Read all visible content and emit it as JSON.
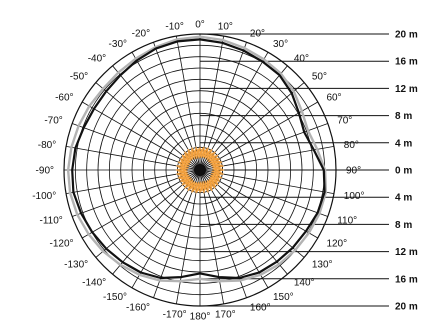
{
  "angle_labels": [
    "0°",
    "10°",
    "20°",
    "30°",
    "40°",
    "50°",
    "60°",
    "70°",
    "80°",
    "90°",
    "100°",
    "110°",
    "120°",
    "130°",
    "140°",
    "150°",
    "160°",
    "170°",
    "180°",
    "-170°",
    "-160°",
    "-150°",
    "-140°",
    "-130°",
    "-120°",
    "-110°",
    "-100°",
    "-90°",
    "-80°",
    "-70°",
    "-60°",
    "-50°",
    "-40°",
    "-30°",
    "-20°",
    "-10°"
  ],
  "distance_scale": [
    {
      "label": "20 m",
      "value": 20,
      "side": "top"
    },
    {
      "label": "16 m",
      "value": 16,
      "side": "top"
    },
    {
      "label": "12 m",
      "value": 12,
      "side": "top"
    },
    {
      "label": "8 m",
      "value": 8,
      "side": "top"
    },
    {
      "label": "4 m",
      "value": 4,
      "side": "top"
    },
    {
      "label": "0 m",
      "value": 0,
      "side": "center"
    },
    {
      "label": "4 m",
      "value": 4,
      "side": "bottom"
    },
    {
      "label": "8 m",
      "value": 8,
      "side": "bottom"
    },
    {
      "label": "12 m",
      "value": 12,
      "side": "bottom"
    },
    {
      "label": "16 m",
      "value": 16,
      "side": "bottom"
    },
    {
      "label": "20 m",
      "value": 20,
      "side": "bottom"
    }
  ],
  "range_max_m": 20,
  "ring_count": 12,
  "spoke_step_deg": 10,
  "curves": [
    {
      "color": "#111111",
      "points": [
        {
          "angle": 0,
          "r": 19.2
        },
        {
          "angle": 10,
          "r": 19.0
        },
        {
          "angle": 20,
          "r": 18.7
        },
        {
          "angle": 30,
          "r": 18.4
        },
        {
          "angle": 40,
          "r": 18.2
        },
        {
          "angle": 50,
          "r": 17.6
        },
        {
          "angle": 60,
          "r": 16.8
        },
        {
          "angle": 70,
          "r": 16.3
        },
        {
          "angle": 80,
          "r": 17.0
        },
        {
          "angle": 90,
          "r": 18.2
        },
        {
          "angle": 100,
          "r": 18.6
        },
        {
          "angle": 110,
          "r": 18.4
        },
        {
          "angle": 120,
          "r": 18.0
        },
        {
          "angle": 130,
          "r": 17.8
        },
        {
          "angle": 140,
          "r": 17.6
        },
        {
          "angle": 150,
          "r": 17.4
        },
        {
          "angle": 160,
          "r": 16.9
        },
        {
          "angle": 170,
          "r": 16.0
        },
        {
          "angle": 180,
          "r": 15.2
        },
        {
          "angle": 190,
          "r": 16.0
        },
        {
          "angle": 200,
          "r": 16.9
        },
        {
          "angle": 210,
          "r": 17.4
        },
        {
          "angle": 220,
          "r": 17.7
        },
        {
          "angle": 230,
          "r": 18.0
        },
        {
          "angle": 240,
          "r": 18.3
        },
        {
          "angle": 250,
          "r": 18.6
        },
        {
          "angle": 260,
          "r": 18.9
        },
        {
          "angle": 270,
          "r": 18.8
        },
        {
          "angle": 280,
          "r": 18.6
        },
        {
          "angle": 290,
          "r": 18.2
        },
        {
          "angle": 300,
          "r": 18.0
        },
        {
          "angle": 310,
          "r": 18.0
        },
        {
          "angle": 320,
          "r": 18.2
        },
        {
          "angle": 330,
          "r": 18.6
        },
        {
          "angle": 340,
          "r": 19.0
        },
        {
          "angle": 350,
          "r": 19.2
        }
      ]
    },
    {
      "color": "#b3b3b3",
      "points": [
        {
          "angle": 0,
          "r": 19.6
        },
        {
          "angle": 10,
          "r": 19.4
        },
        {
          "angle": 20,
          "r": 19.1
        },
        {
          "angle": 30,
          "r": 18.8
        },
        {
          "angle": 40,
          "r": 18.5
        },
        {
          "angle": 50,
          "r": 18.0
        },
        {
          "angle": 60,
          "r": 17.3
        },
        {
          "angle": 70,
          "r": 16.9
        },
        {
          "angle": 80,
          "r": 17.5
        },
        {
          "angle": 90,
          "r": 18.4
        },
        {
          "angle": 100,
          "r": 18.8
        },
        {
          "angle": 110,
          "r": 18.7
        },
        {
          "angle": 120,
          "r": 18.5
        },
        {
          "angle": 130,
          "r": 18.3
        },
        {
          "angle": 140,
          "r": 18.1
        },
        {
          "angle": 150,
          "r": 17.8
        },
        {
          "angle": 160,
          "r": 17.3
        },
        {
          "angle": 170,
          "r": 16.6
        },
        {
          "angle": 180,
          "r": 16.0
        },
        {
          "angle": 190,
          "r": 16.6
        },
        {
          "angle": 200,
          "r": 17.3
        },
        {
          "angle": 210,
          "r": 17.8
        },
        {
          "angle": 220,
          "r": 18.2
        },
        {
          "angle": 230,
          "r": 18.6
        },
        {
          "angle": 240,
          "r": 18.9
        },
        {
          "angle": 250,
          "r": 19.2
        },
        {
          "angle": 260,
          "r": 19.4
        },
        {
          "angle": 270,
          "r": 19.4
        },
        {
          "angle": 280,
          "r": 19.2
        },
        {
          "angle": 290,
          "r": 19.0
        },
        {
          "angle": 300,
          "r": 18.8
        },
        {
          "angle": 310,
          "r": 18.6
        },
        {
          "angle": 320,
          "r": 18.7
        },
        {
          "angle": 330,
          "r": 18.9
        },
        {
          "angle": 340,
          "r": 19.2
        },
        {
          "angle": 350,
          "r": 19.5
        }
      ]
    }
  ],
  "near_field": {
    "color": "#f2a03d",
    "base_r_m": 2.8,
    "amplitude_m": 0.5,
    "points_per_band": 5,
    "bands": 4,
    "start_r_m": 3.0,
    "rotation_step_deg": 7
  }
}
